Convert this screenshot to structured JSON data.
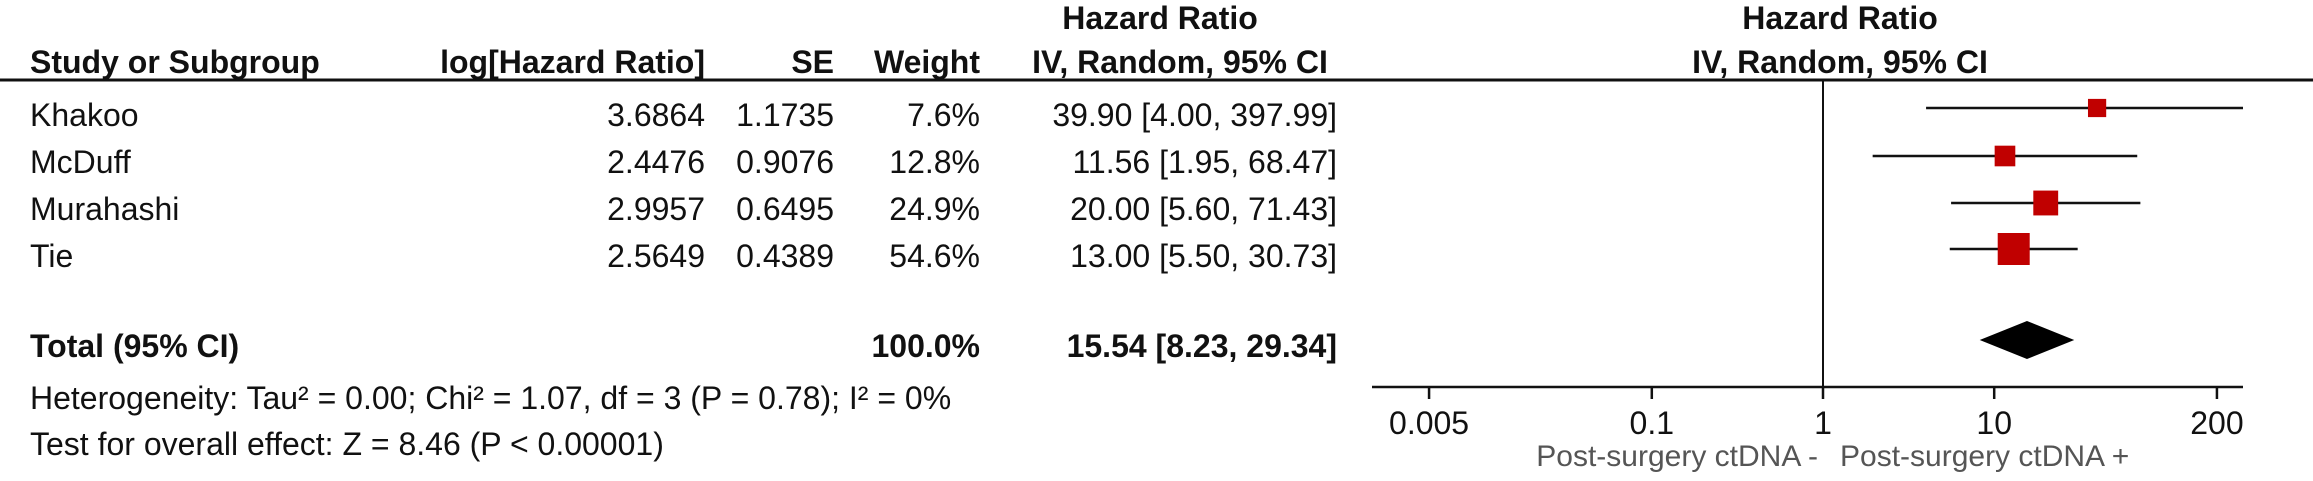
{
  "headers": {
    "study": "Study or Subgroup",
    "log_hr": "log[Hazard Ratio]",
    "se": "SE",
    "weight": "Weight",
    "hr_title": "Hazard Ratio",
    "hr_method": "IV, Random, 95% CI",
    "plot_title": "Hazard Ratio",
    "plot_method": "IV, Random, 95% CI"
  },
  "rows": [
    {
      "study": "Khakoo",
      "log_hr": "3.6864",
      "se": "1.1735",
      "weight": "7.6%",
      "ci": "39.90 [4.00, 397.99]"
    },
    {
      "study": "McDuff",
      "log_hr": "2.4476",
      "se": "0.9076",
      "weight": "12.8%",
      "ci": "11.56 [1.95, 68.47]"
    },
    {
      "study": "Murahashi",
      "log_hr": "2.9957",
      "se": "0.6495",
      "weight": "24.9%",
      "ci": "20.00 [5.60, 71.43]"
    },
    {
      "study": "Tie",
      "log_hr": "2.5649",
      "se": "0.4389",
      "weight": "54.6%",
      "ci": "13.00 [5.50, 30.73]"
    }
  ],
  "total": {
    "label": "Total (95% CI)",
    "weight": "100.0%",
    "ci": "15.54 [8.23, 29.34]"
  },
  "heterogeneity": "Heterogeneity: Tau² = 0.00; Chi² = 1.07, df = 3 (P = 0.78); I² = 0%",
  "overall_effect": "Test for overall effect: Z = 8.46 (P < 0.00001)",
  "axis": {
    "ticks": [
      "0.005",
      "0.1",
      "1",
      "10",
      "200"
    ],
    "left_label": "Post-surgery ctDNA -",
    "right_label": "Post-surgery ctDNA +"
  },
  "colors": {
    "study_marker": "#c00000",
    "summary_marker": "#000000"
  },
  "chart_data": {
    "type": "scatter",
    "scale": "log",
    "xlim": [
      0.005,
      200
    ],
    "reference_line": 1,
    "studies": [
      {
        "name": "Khakoo",
        "hr": 39.9,
        "lower": 4.0,
        "upper": 397.99,
        "weight": 7.6
      },
      {
        "name": "McDuff",
        "hr": 11.56,
        "lower": 1.95,
        "upper": 68.47,
        "weight": 12.8
      },
      {
        "name": "Murahashi",
        "hr": 20.0,
        "lower": 5.6,
        "upper": 71.43,
        "weight": 24.9
      },
      {
        "name": "Tie",
        "hr": 13.0,
        "lower": 5.5,
        "upper": 30.73,
        "weight": 54.6
      }
    ],
    "summary": {
      "hr": 15.54,
      "lower": 8.23,
      "upper": 29.34
    }
  }
}
